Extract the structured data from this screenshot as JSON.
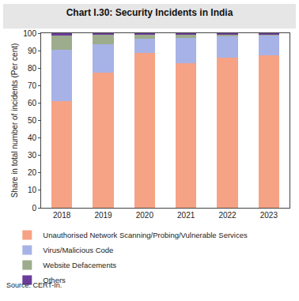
{
  "chart_data": {
    "type": "bar",
    "stacked": true,
    "title": "Chart I.30: Security Incidents in India",
    "y_label": "Share in total number of incidents (Per cent)",
    "source": "Source: CERT-In.",
    "categories": [
      "2018",
      "2019",
      "2020",
      "2021",
      "2022",
      "2023"
    ],
    "series": [
      {
        "name": "Unauthorised Network Scanning/Probing/Vulnerable Services",
        "color": "#F6A285",
        "values": [
          61,
          77.5,
          88.5,
          83,
          86,
          87.5
        ]
      },
      {
        "name": "Virus/Malicious Code",
        "color": "#A7B3E6",
        "values": [
          29.5,
          16,
          8.5,
          14.5,
          12,
          11.5
        ]
      },
      {
        "name": "Website Defacements",
        "color": "#9CAC8C",
        "values": [
          8,
          5.5,
          2.5,
          2,
          1.5,
          0.5
        ]
      },
      {
        "name": "Others",
        "color": "#6A3D9A",
        "values": [
          1.5,
          1,
          0.5,
          0.5,
          0.5,
          0.5
        ]
      }
    ],
    "ylim": [
      0,
      100
    ],
    "yticks": [
      0,
      10,
      20,
      30,
      40,
      50,
      60,
      70,
      80,
      90,
      100
    ],
    "grid": false,
    "legend": "bottom"
  }
}
